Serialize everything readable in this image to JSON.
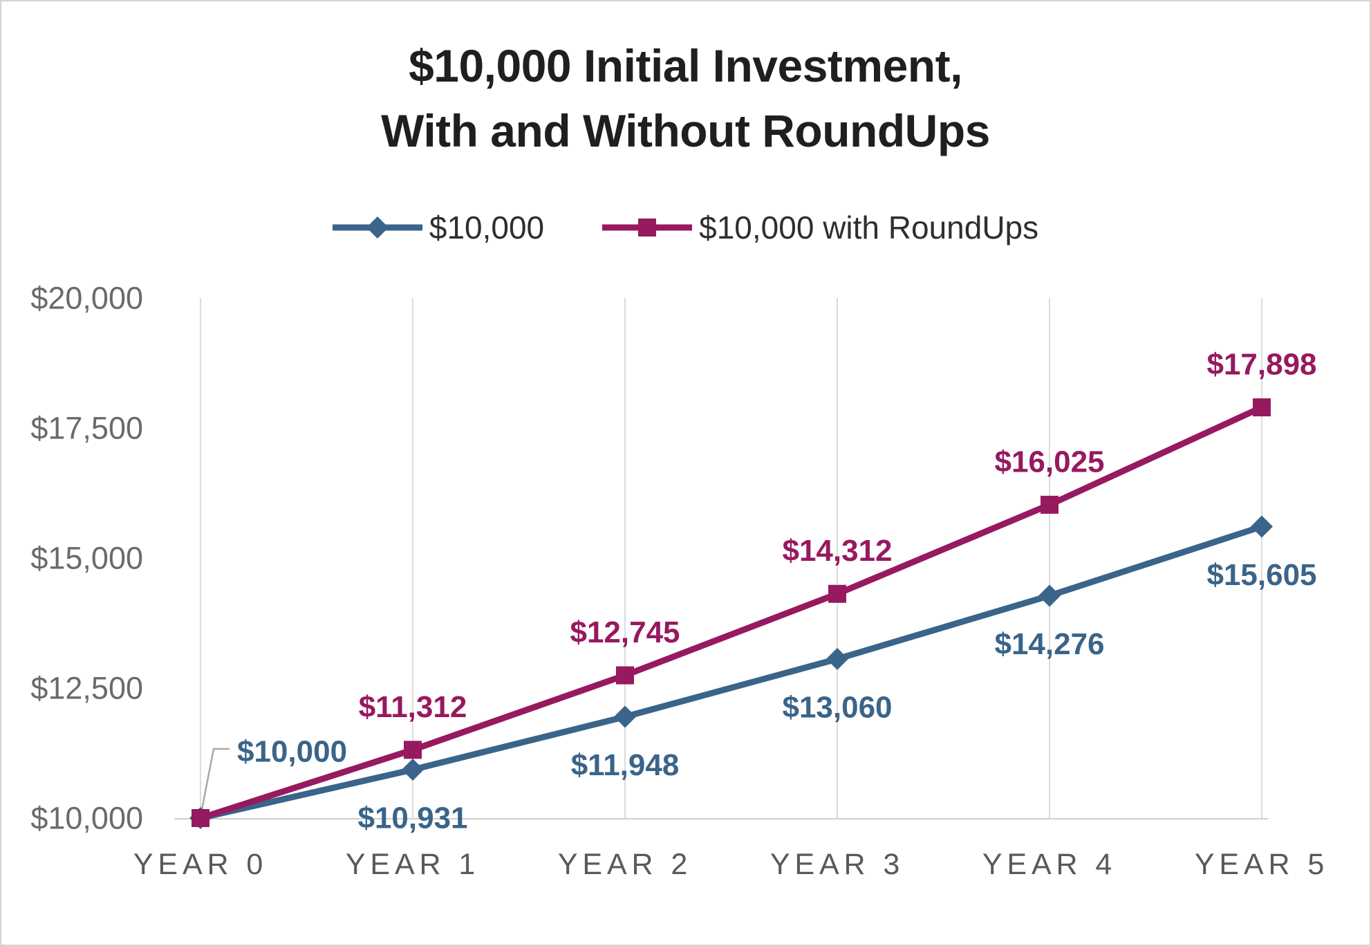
{
  "title": {
    "line1": "$10,000 Initial Investment,",
    "line2": "With and Without RoundUps"
  },
  "colors": {
    "title_text": "#1f1f1f",
    "gridline": "#dcdcdc",
    "axis_line": "#cfcfcf",
    "leader_line": "#a8a8a8",
    "y_tick_label": "#6a6a6a",
    "x_category_label": "#595959",
    "background": "#ffffff",
    "frame_border": "#d6d3d3",
    "series_blue": "#3a6489",
    "series_magenta": "#97195f"
  },
  "chart_data": {
    "type": "line",
    "title": "$10,000 Initial Investment, With and Without RoundUps",
    "categories": [
      "YEAR 0",
      "YEAR 1",
      "YEAR 2",
      "YEAR 3",
      "YEAR 4",
      "YEAR 5"
    ],
    "series": [
      {
        "name": "$10,000",
        "color": "#3a6489",
        "marker": "diamond",
        "label_position": "below",
        "values": [
          10000,
          10931,
          11948,
          13060,
          14276,
          15605
        ],
        "labels": [
          "$10,000",
          "$10,931",
          "$11,948",
          "$13,060",
          "$14,276",
          "$15,605"
        ]
      },
      {
        "name": "$10,000 with RoundUps",
        "color": "#97195f",
        "marker": "square",
        "label_position": "above",
        "values": [
          10000,
          11312,
          12745,
          14312,
          16025,
          17898
        ],
        "labels": [
          null,
          "$11,312",
          "$12,745",
          "$14,312",
          "$16,025",
          "$17,898"
        ]
      }
    ],
    "ylim": [
      10000,
      20000
    ],
    "yticks": [
      {
        "value": 20000,
        "label": "$20,000"
      },
      {
        "value": 17500,
        "label": "$17,500"
      },
      {
        "value": 15000,
        "label": "$15,000"
      },
      {
        "value": 12500,
        "label": "$12,500"
      },
      {
        "value": 10000,
        "label": "$10,000"
      }
    ],
    "grid": "vertical-only",
    "legend_position": "top",
    "callout": {
      "series": 0,
      "point": 0,
      "label": "$10,000"
    }
  }
}
